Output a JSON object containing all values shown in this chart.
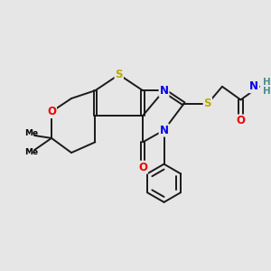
{
  "bg_color": "#e6e6e6",
  "atom_colors": {
    "C": "#000000",
    "N": "#0000ee",
    "O": "#ee0000",
    "S": "#bbaa00",
    "H": "#4a9090"
  },
  "bond_color": "#1a1a1a",
  "bond_width": 1.4,
  "dbo": 0.06,
  "fs": 8.5
}
